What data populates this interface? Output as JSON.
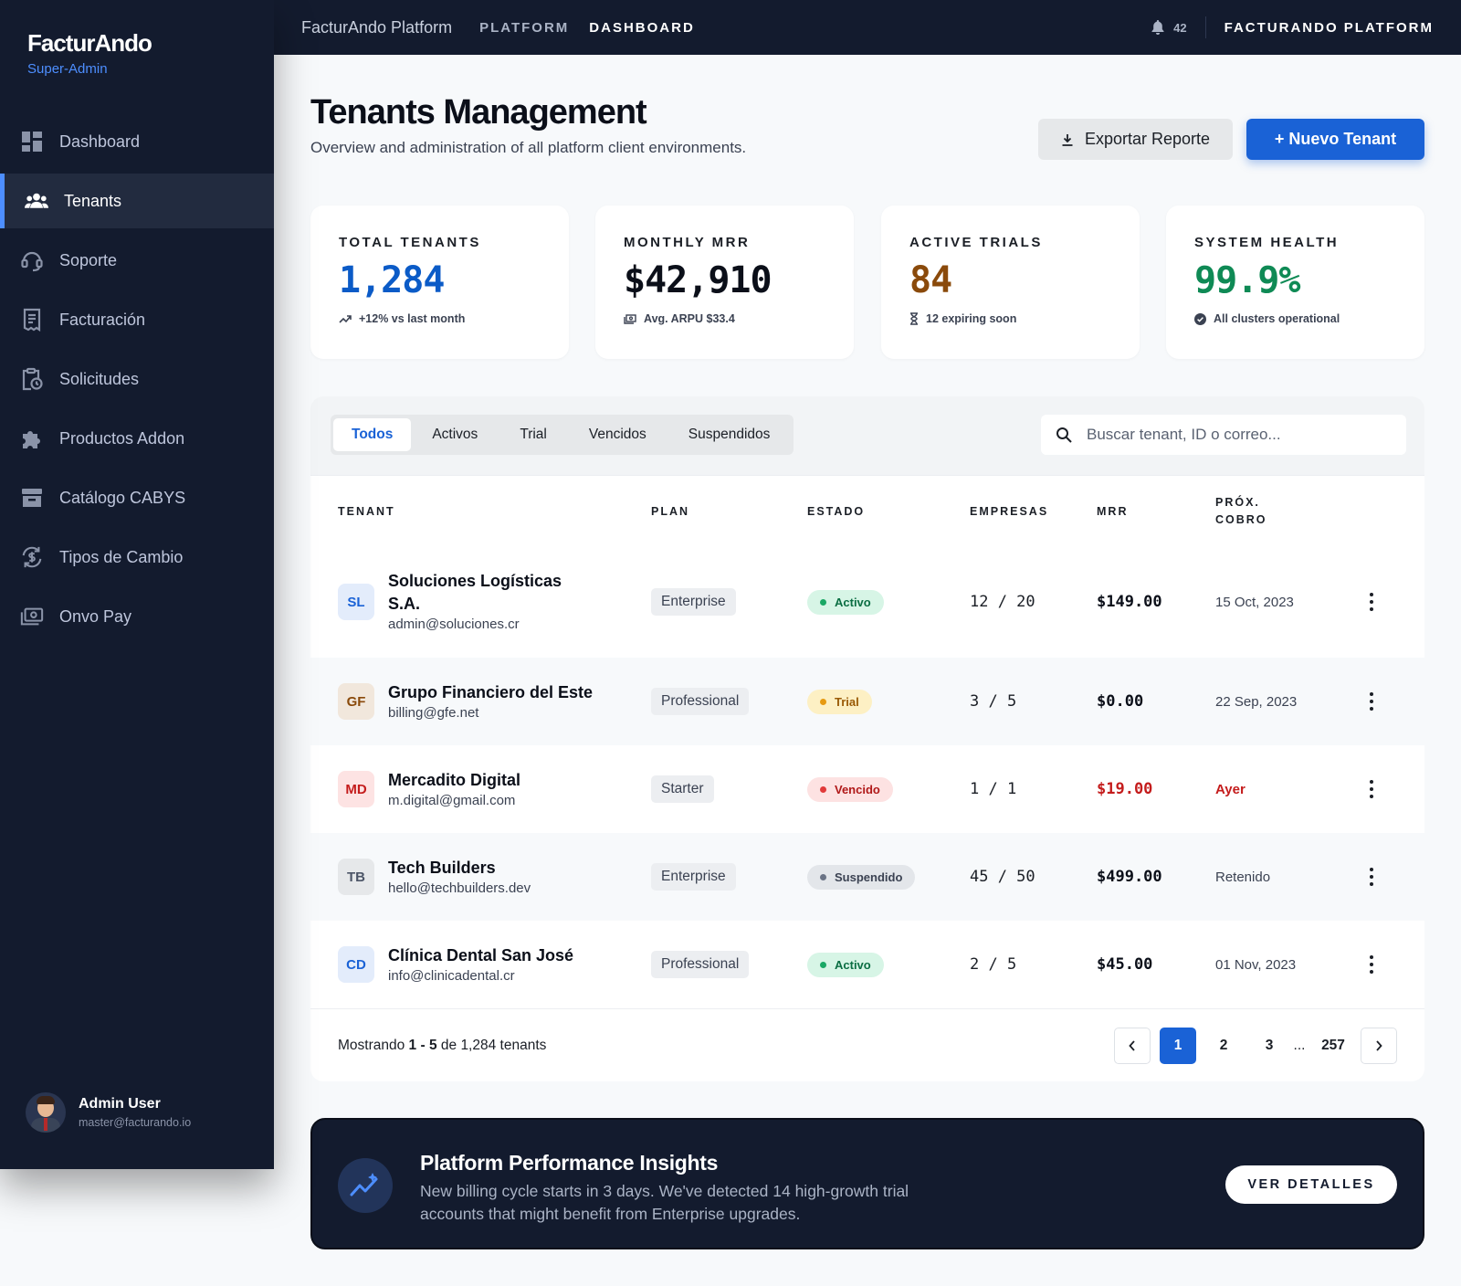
{
  "sidebar": {
    "brand": "FacturAndo",
    "role": "Super-Admin",
    "items": [
      {
        "label": "Dashboard",
        "icon": "dashboard-icon"
      },
      {
        "label": "Tenants",
        "icon": "users-icon",
        "active": true
      },
      {
        "label": "Soporte",
        "icon": "support-icon"
      },
      {
        "label": "Facturación",
        "icon": "receipt-icon"
      },
      {
        "label": "Solicitudes",
        "icon": "clipboard-clock-icon"
      },
      {
        "label": "Productos Addon",
        "icon": "puzzle-icon"
      },
      {
        "label": "Catálogo CABYS",
        "icon": "archive-icon"
      },
      {
        "label": "Tipos de Cambio",
        "icon": "currency-exchange-icon"
      },
      {
        "label": "Onvo Pay",
        "icon": "payments-icon"
      }
    ],
    "user": {
      "name": "Admin User",
      "email": "master@facturando.io"
    }
  },
  "topbar": {
    "platform": "FacturAndo Platform",
    "links": [
      "PLATFORM",
      "DASHBOARD"
    ],
    "notifications": "42",
    "brand": "FACTURANDO PLATFORM"
  },
  "header": {
    "title": "Tenants Management",
    "subtitle": "Overview and administration of all platform client environments.",
    "export_label": "Exportar Reporte",
    "new_label": "+ Nuevo Tenant"
  },
  "stats": [
    {
      "label": "TOTAL TENANTS",
      "value": "1,284",
      "foot": "+12% vs last month",
      "color": "#0b5bc7",
      "icon": "trending-up-icon"
    },
    {
      "label": "MONTHLY MRR",
      "value": "$42,910",
      "foot": "Avg. ARPU $33.4",
      "color": "#0b0f19",
      "icon": "payments-icon"
    },
    {
      "label": "ACTIVE TRIALS",
      "value": "84",
      "foot": "12 expiring soon",
      "color": "#8a4a0b",
      "icon": "hourglass-icon"
    },
    {
      "label": "SYSTEM HEALTH",
      "value": "99.9%",
      "foot": "All clusters operational",
      "color": "#0f8a55",
      "icon": "check-circle-icon"
    }
  ],
  "filters": {
    "tabs": [
      "Todos",
      "Activos",
      "Trial",
      "Vencidos",
      "Suspendidos"
    ],
    "active_tab": "Todos",
    "search_placeholder": "Buscar tenant, ID o correo..."
  },
  "table": {
    "columns": [
      "TENANT",
      "PLAN",
      "ESTADO",
      "EMPRESAS",
      "MRR",
      "PRÓX. COBRO"
    ],
    "rows": [
      {
        "initials": "SL",
        "name": "Soluciones Logísticas S.A.",
        "email": "admin@soluciones.cr",
        "plan": "Enterprise",
        "status": "Activo",
        "empresas": "12 / 20",
        "mrr": "$149.00",
        "next": "15 Oct, 2023"
      },
      {
        "initials": "GF",
        "name": "Grupo Financiero del Este",
        "email": "billing@gfe.net",
        "plan": "Professional",
        "status": "Trial",
        "empresas": "3 / 5",
        "mrr": "$0.00",
        "next": "22 Sep, 2023"
      },
      {
        "initials": "MD",
        "name": "Mercadito Digital",
        "email": "m.digital@gmail.com",
        "plan": "Starter",
        "status": "Vencido",
        "empresas": "1 / 1",
        "mrr": "$19.00",
        "next": "Ayer"
      },
      {
        "initials": "TB",
        "name": "Tech Builders",
        "email": "hello@techbuilders.dev",
        "plan": "Enterprise",
        "status": "Suspendido",
        "empresas": "45 / 50",
        "mrr": "$499.00",
        "next": "Retenido"
      },
      {
        "initials": "CD",
        "name": "Clínica Dental San José",
        "email": "info@clinicadental.cr",
        "plan": "Professional",
        "status": "Activo",
        "empresas": "2 / 5",
        "mrr": "$45.00",
        "next": "01 Nov, 2023"
      }
    ],
    "showing_prefix": "Mostrando",
    "showing_range": "1 - 5",
    "showing_mid": "de",
    "showing_total": "1,284",
    "showing_suffix": "tenants",
    "pages": [
      "1",
      "2",
      "3",
      "...",
      "257"
    ],
    "current_page": "1"
  },
  "insights": {
    "title": "Platform Performance Insights",
    "text": "New billing cycle starts in 3 days. We've detected 14 high-growth trial accounts that might benefit from Enterprise upgrades.",
    "button": "VER DETALLES"
  },
  "colors": {
    "accent": "#1a62d6",
    "sidebar_bg": "#131b2e",
    "active": "#0f8a55",
    "trial": "#b5650b",
    "expired": "#c41c1c",
    "suspended": "#4c5567"
  }
}
